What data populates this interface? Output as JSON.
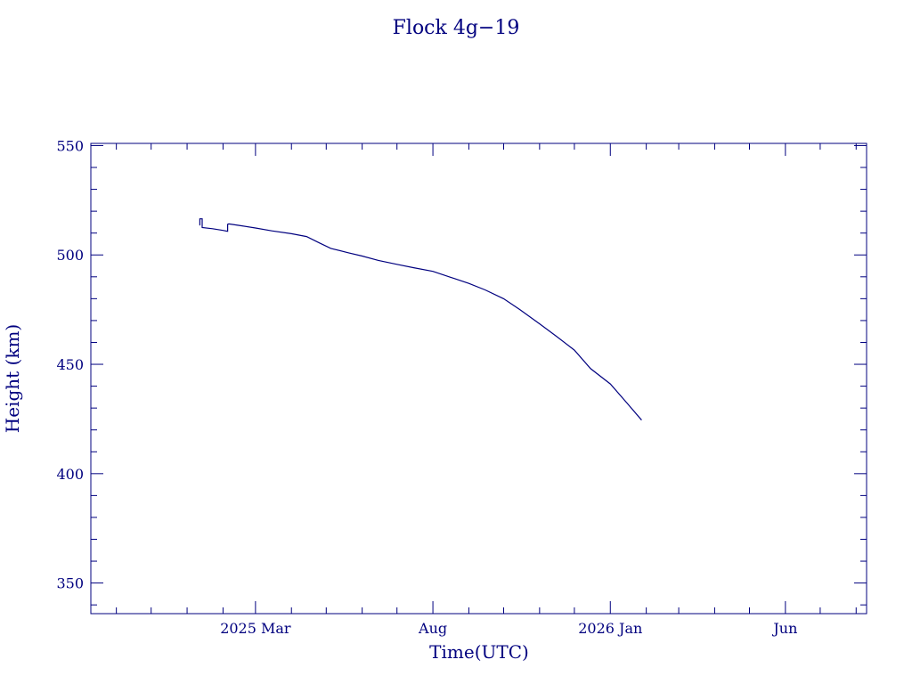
{
  "chart_data": {
    "type": "line",
    "title": "Flock 4g−19",
    "xlabel": "Time(UTC)",
    "ylabel": "Height (km)",
    "xlim": [
      "2024-10-10",
      "2026-08-10"
    ],
    "ylim": [
      336,
      551
    ],
    "yticks": [
      350,
      400,
      450,
      500,
      550
    ],
    "xticks": [
      {
        "date": "2025-03-01",
        "label": "2025 Mar"
      },
      {
        "date": "2025-08-01",
        "label": "Aug"
      },
      {
        "date": "2026-01-01",
        "label": "2026 Jan"
      },
      {
        "date": "2026-06-01",
        "label": "Jun"
      }
    ],
    "color": "#00007f",
    "grid": false,
    "series": [
      {
        "x": [
          "2025-01-12",
          "2025-01-12",
          "2025-01-14",
          "2025-01-14",
          "2025-01-23",
          "2025-02-01",
          "2025-02-05",
          "2025-02-05",
          "2025-02-06",
          "2025-02-15",
          "2025-03-01",
          "2025-03-15",
          "2025-04-01",
          "2025-04-14",
          "2025-04-25",
          "2025-05-05",
          "2025-05-20",
          "2025-06-01",
          "2025-06-15",
          "2025-07-01",
          "2025-07-15",
          "2025-08-01",
          "2025-08-15",
          "2025-09-01",
          "2025-09-15",
          "2025-10-01",
          "2025-10-15",
          "2025-11-01",
          "2025-11-15",
          "2025-12-01",
          "2025-12-15",
          "2026-01-01",
          "2026-01-15",
          "2026-01-28"
        ],
        "y": [
          513.5,
          516.5,
          516.5,
          512.5,
          512.0,
          511.2,
          510.8,
          514.0,
          514.2,
          513.5,
          512.3,
          511.0,
          509.7,
          508.4,
          505.5,
          503.0,
          501.0,
          499.5,
          497.5,
          495.7,
          494.2,
          492.5,
          490.0,
          487.0,
          484.0,
          480.0,
          475.0,
          468.5,
          463.0,
          456.5,
          448.0,
          441.0,
          432.5,
          424.5
        ]
      }
    ]
  }
}
